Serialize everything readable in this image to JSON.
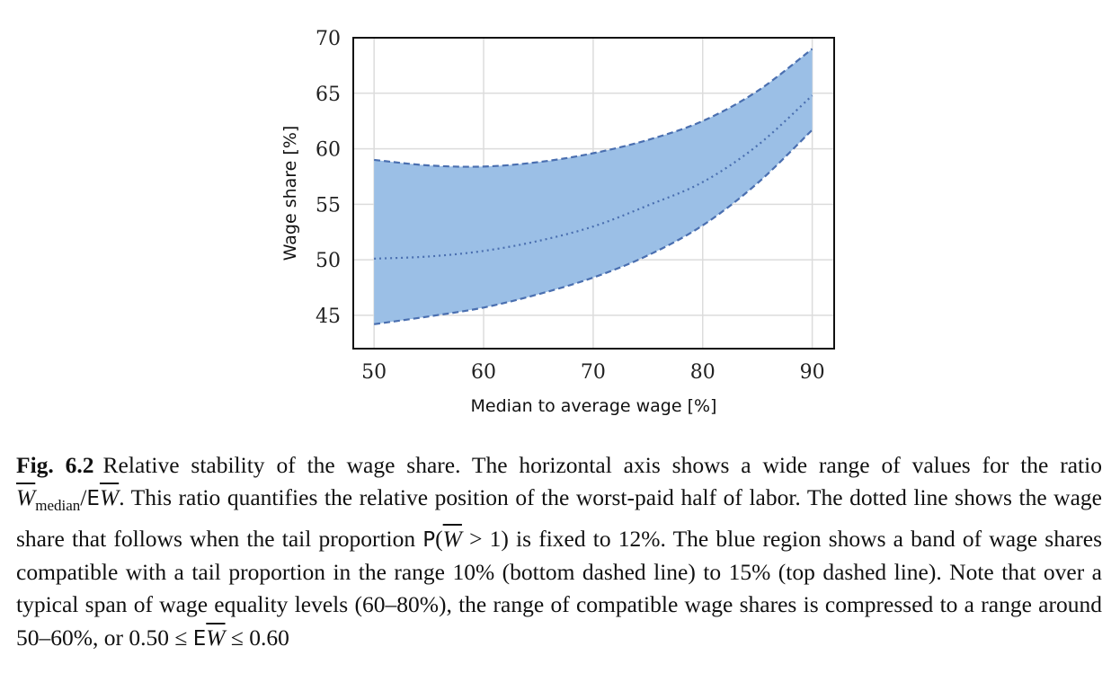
{
  "chart_data": {
    "type": "area",
    "xlabel": "Median to average wage [%]",
    "ylabel": "Wage share [%]",
    "xlim": [
      48.1,
      92.0
    ],
    "ylim": [
      42.0,
      70.0
    ],
    "xticks": [
      "50",
      "60",
      "70",
      "80",
      "90"
    ],
    "yticks": [
      "45",
      "50",
      "55",
      "60",
      "65",
      "70"
    ],
    "grid": true,
    "band_color": "#9bbfe6",
    "line_color": "#4a6fb0",
    "x": [
      50,
      55,
      60,
      65,
      70,
      75,
      80,
      85,
      90
    ],
    "series": [
      {
        "style": "dashed-top",
        "values": [
          59.0,
          58.5,
          58.4,
          58.8,
          59.6,
          60.8,
          62.5,
          65.2,
          69.0
        ]
      },
      {
        "style": "dotted-middle",
        "values": [
          50.1,
          50.3,
          50.8,
          51.7,
          53.0,
          54.9,
          57.0,
          60.3,
          64.8
        ]
      },
      {
        "style": "dashed-bottom",
        "values": [
          44.2,
          44.9,
          45.7,
          46.9,
          48.4,
          50.4,
          53.1,
          56.9,
          61.7
        ]
      }
    ]
  },
  "caption": {
    "label": "Fig. 6.2",
    "text1": "Relative stability of the wage share. The horizontal axis shows a wide range of values for the ratio ",
    "w": "W",
    "sub": "median",
    "slash": "/",
    "E": "E",
    "text2": ". This ratio quantifies the relative position of the worst-paid half of labor. The dotted line shows the wage share that follows when the tail proportion ",
    "P": "P",
    "paren_open": "(",
    "gt1": " > 1)",
    "text3": " is fixed to 12%. The blue region shows a band of wage shares compatible with a tail proportion in the range 10% (bottom dashed line) to 15% (top dashed line). Note that over a typical span of wage equality levels (60–80%), the range of compatible wage shares is compressed to a range around 50–60%, or 0.50 ≤ ",
    "text4": " ≤ 0.60"
  }
}
